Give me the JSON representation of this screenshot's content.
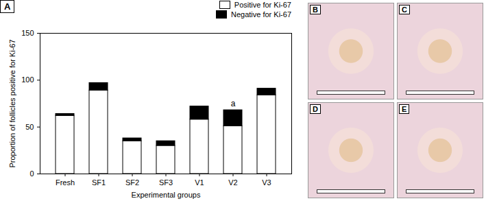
{
  "chart_data": {
    "type": "bar",
    "panel_label": "A",
    "stacked": true,
    "legend": "top-right",
    "x_label": "Experimental groups",
    "y_label": "Proportion of follicles positive for Ki-67",
    "categories": [
      "Fresh",
      "SF1",
      "SF2",
      "SF3",
      "V1",
      "V2",
      "V3"
    ],
    "series": [
      {
        "name": "Positive for Ki-67",
        "color": "#ffffff",
        "values": [
          62,
          89,
          35,
          30,
          58,
          51,
          84
        ]
      },
      {
        "name": "Negative for Ki-67",
        "color": "#000000",
        "values": [
          2,
          8,
          3,
          5,
          14,
          17,
          7
        ]
      }
    ],
    "annotations": [
      {
        "text": "a",
        "category": "V2",
        "y": 75
      }
    ],
    "ylim": [
      0,
      150
    ],
    "yticks": [
      0,
      50,
      100,
      150
    ]
  },
  "image_panels": [
    {
      "label": "B"
    },
    {
      "label": "C"
    },
    {
      "label": "D"
    },
    {
      "label": "E"
    }
  ]
}
